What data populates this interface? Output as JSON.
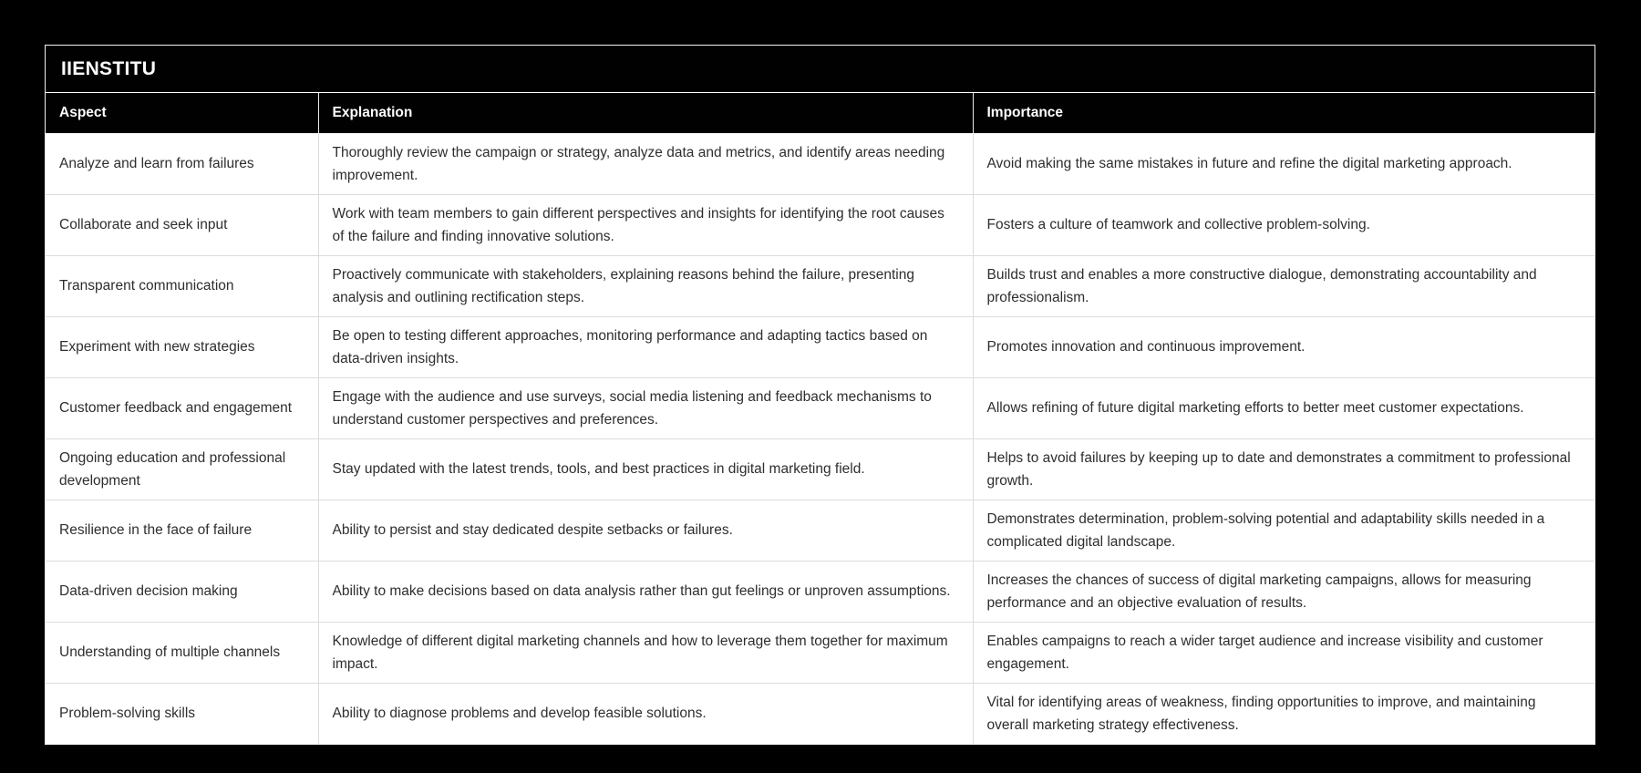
{
  "brand": {
    "title": "IIENSTITU"
  },
  "colors": {
    "page_background": "#000000",
    "header_background": "#010101",
    "header_text": "#ffffff",
    "body_background": "#ffffff",
    "body_text": "#2e2e2e",
    "divider": "#dcdcdc"
  },
  "table": {
    "headers": [
      "Aspect",
      "Explanation",
      "Importance"
    ],
    "rows": [
      {
        "aspect": "Analyze and learn from failures",
        "explanation": "Thoroughly review the campaign or strategy, analyze data and metrics, and identify areas needing improvement.",
        "importance": "Avoid making the same mistakes in future and refine the digital marketing approach."
      },
      {
        "aspect": "Collaborate and seek input",
        "explanation": "Work with team members to gain different perspectives and insights for identifying the root causes of the failure and finding innovative solutions.",
        "importance": "Fosters a culture of teamwork and collective problem-solving."
      },
      {
        "aspect": "Transparent communication",
        "explanation": "Proactively communicate with stakeholders, explaining reasons behind the failure, presenting analysis and outlining rectification steps.",
        "importance": "Builds trust and enables a more constructive dialogue, demonstrating accountability and professionalism."
      },
      {
        "aspect": "Experiment with new strategies",
        "explanation": "Be open to testing different approaches, monitoring performance and adapting tactics based on data-driven insights.",
        "importance": "Promotes innovation and continuous improvement."
      },
      {
        "aspect": "Customer feedback and engagement",
        "explanation": "Engage with the audience and use surveys, social media listening and feedback mechanisms to understand customer perspectives and preferences.",
        "importance": "Allows refining of future digital marketing efforts to better meet customer expectations."
      },
      {
        "aspect": "Ongoing education and professional development",
        "explanation": "Stay updated with the latest trends, tools, and best practices in digital marketing field.",
        "importance": "Helps to avoid failures by keeping up to date and demonstrates a commitment to professional growth."
      },
      {
        "aspect": "Resilience in the face of failure",
        "explanation": "Ability to persist and stay dedicated despite setbacks or failures.",
        "importance": "Demonstrates determination, problem-solving potential and adaptability skills needed in a complicated digital landscape."
      },
      {
        "aspect": "Data-driven decision making",
        "explanation": "Ability to make decisions based on data analysis rather than gut feelings or unproven assumptions.",
        "importance": "Increases the chances of success of digital marketing campaigns, allows for measuring performance and an objective evaluation of results."
      },
      {
        "aspect": "Understanding of multiple channels",
        "explanation": "Knowledge of different digital marketing channels and how to leverage them together for maximum impact.",
        "importance": "Enables campaigns to reach a wider target audience and increase visibility and customer engagement."
      },
      {
        "aspect": "Problem-solving skills",
        "explanation": "Ability to diagnose problems and develop feasible solutions.",
        "importance": "Vital for identifying areas of weakness, finding opportunities to improve, and maintaining overall marketing strategy effectiveness."
      }
    ]
  }
}
